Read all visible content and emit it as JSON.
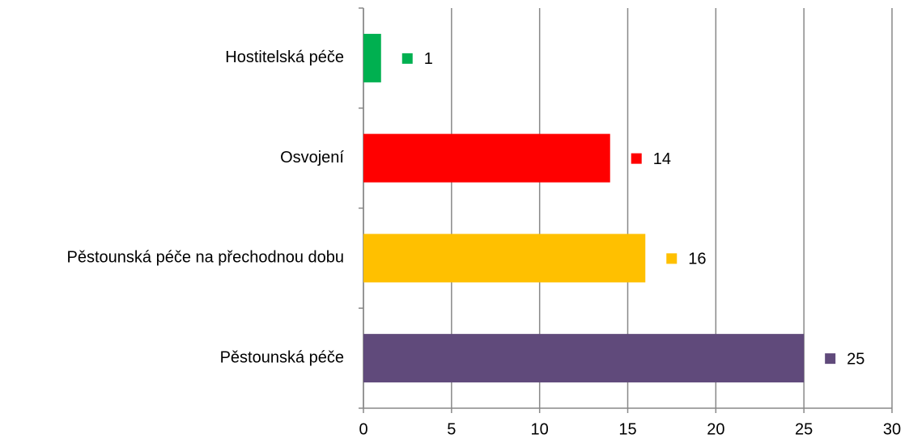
{
  "chart_data": {
    "type": "bar",
    "orientation": "horizontal",
    "categories": [
      "Hostitelská péče",
      "Osvojení",
      "Pěstounská péče na přechodnou dobu",
      "Pěstounská péče"
    ],
    "values": [
      1,
      14,
      16,
      25
    ],
    "colors": [
      "#00b050",
      "#ff0000",
      "#ffc000",
      "#604a7b"
    ],
    "xlim": [
      0,
      30
    ],
    "xticks": [
      0,
      5,
      10,
      15,
      20,
      25,
      30
    ],
    "grid": true
  }
}
